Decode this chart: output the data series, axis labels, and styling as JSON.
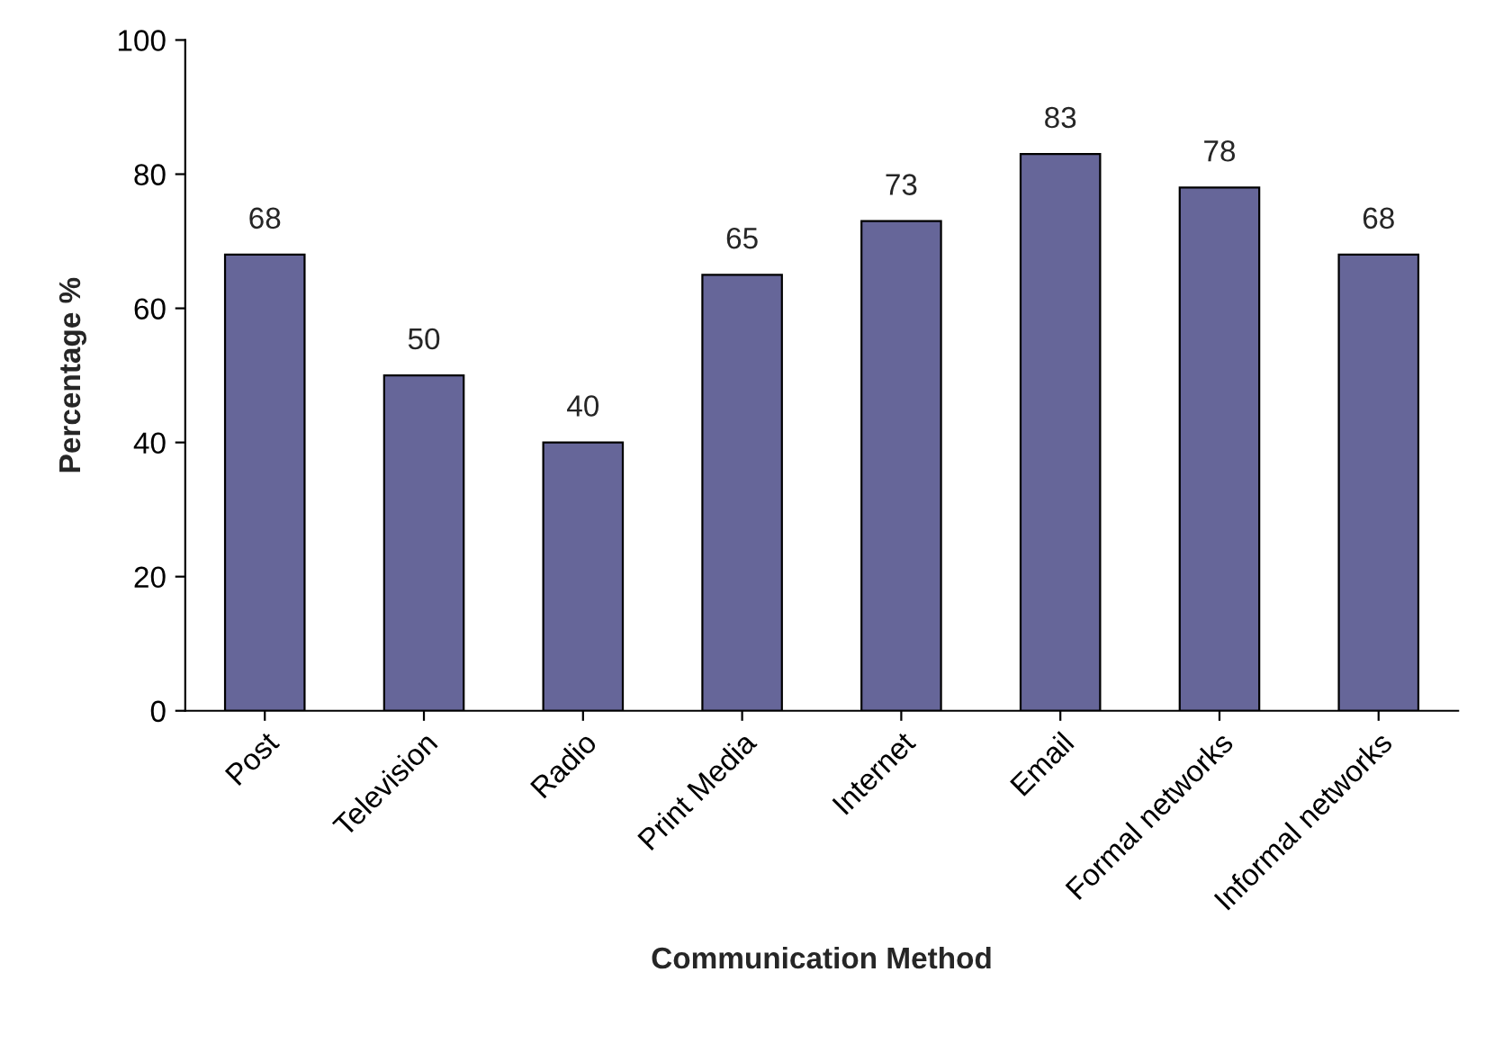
{
  "chart_data": {
    "type": "bar",
    "xlabel": "Communication Method",
    "ylabel": "Percentage %",
    "categories": [
      "Post",
      "Television",
      "Radio",
      "Print Media",
      "Internet",
      "Email",
      "Formal networks",
      "Informal networks"
    ],
    "values": [
      68,
      50,
      40,
      65,
      73,
      83,
      78,
      68
    ],
    "color": "#666699",
    "ylim": [
      0,
      100
    ],
    "yticks": [
      0,
      20,
      40,
      60,
      80,
      100
    ],
    "data_labels": true,
    "grid": false,
    "legend": false
  }
}
